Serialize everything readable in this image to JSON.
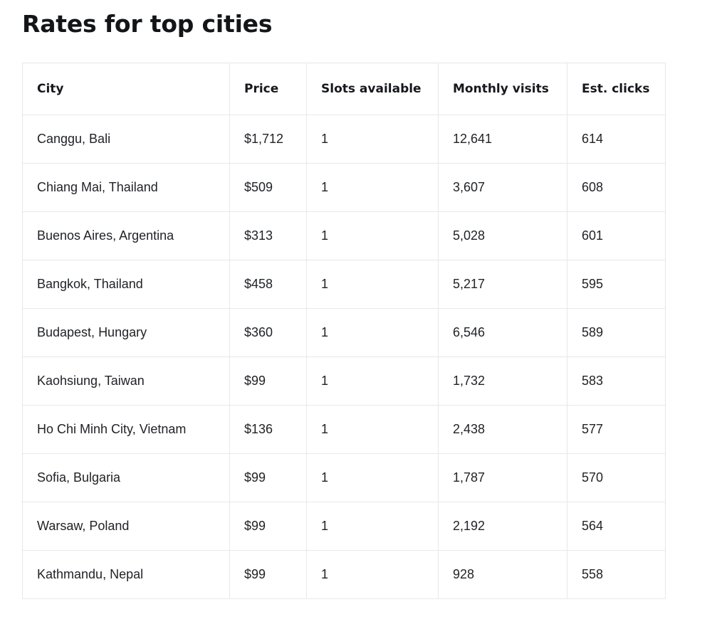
{
  "page": {
    "title": "Rates for top cities"
  },
  "table": {
    "columns": [
      "City",
      "Price",
      "Slots available",
      "Monthly visits",
      "Est. clicks"
    ],
    "column_keys": [
      "city",
      "price",
      "slots",
      "visits",
      "clicks"
    ],
    "rows": [
      [
        "Canggu, Bali",
        "$1,712",
        "1",
        "12,641",
        "614"
      ],
      [
        "Chiang Mai, Thailand",
        "$509",
        "1",
        "3,607",
        "608"
      ],
      [
        "Buenos Aires, Argentina",
        "$313",
        "1",
        "5,028",
        "601"
      ],
      [
        "Bangkok, Thailand",
        "$458",
        "1",
        "5,217",
        "595"
      ],
      [
        "Budapest, Hungary",
        "$360",
        "1",
        "6,546",
        "589"
      ],
      [
        "Kaohsiung, Taiwan",
        "$99",
        "1",
        "1,732",
        "583"
      ],
      [
        "Ho Chi Minh City, Vietnam",
        "$136",
        "1",
        "2,438",
        "577"
      ],
      [
        "Sofia, Bulgaria",
        "$99",
        "1",
        "1,787",
        "570"
      ],
      [
        "Warsaw, Poland",
        "$99",
        "1",
        "2,192",
        "564"
      ],
      [
        "Kathmandu, Nepal",
        "$99",
        "1",
        "928",
        "558"
      ]
    ]
  },
  "colors": {
    "background": "#ffffff",
    "text": "#212327",
    "heading_text": "#141519",
    "table_border": "#e8e8e8"
  }
}
